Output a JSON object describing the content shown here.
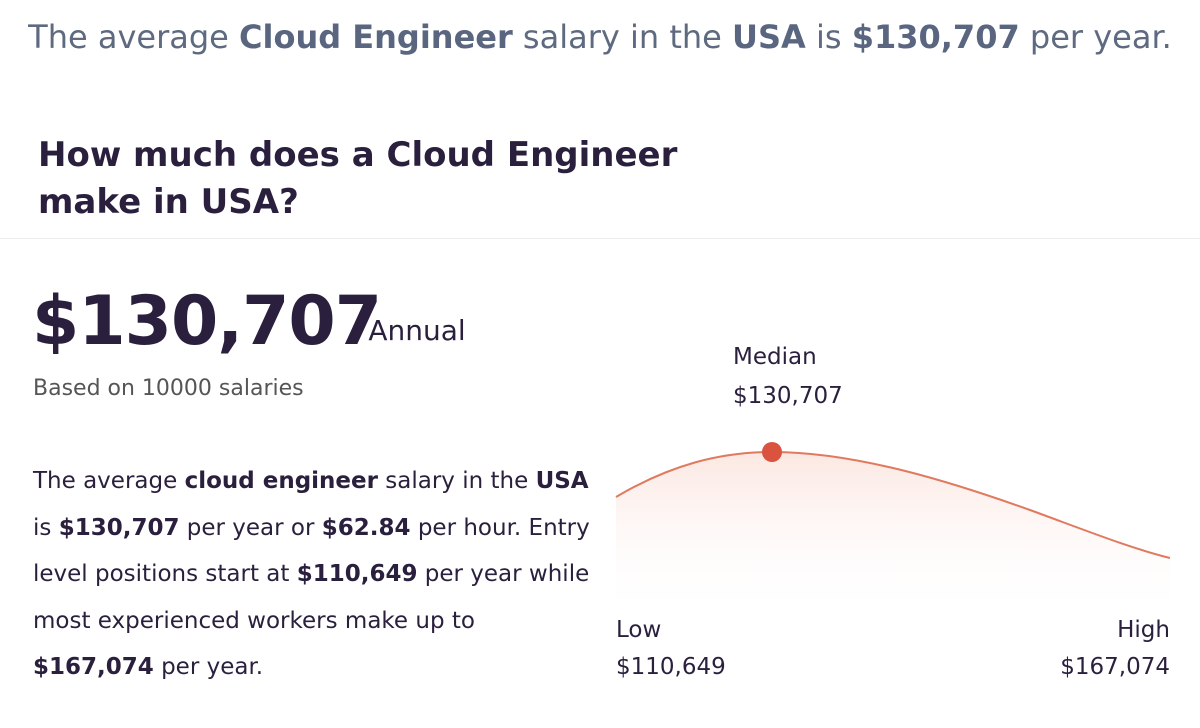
{
  "caption": {
    "p1": "The average ",
    "role": "Cloud Engineer",
    "p2": " salary in the ",
    "country": "USA",
    "p3": " is ",
    "amount": "$130,707",
    "p4": " per year."
  },
  "heading": {
    "line1": "How much does a Cloud Engineer",
    "line2": "make in USA?"
  },
  "summary": {
    "amount": "$130,707",
    "period": "/ Annual",
    "based_on": "Based on 10000 salaries"
  },
  "description": {
    "t1": "The average ",
    "b1": "cloud engineer",
    "t2": " salary in the ",
    "b2": "USA",
    "t3": " is ",
    "b3": "$130,707",
    "t4": " per year or ",
    "b4": "$62.84",
    "t5": " per hour. Entry level positions start at ",
    "b5": "$110,649",
    "t6": " per year while most experienced workers make up to ",
    "b6": "$167,074",
    "t7": " per year."
  },
  "chart_data": {
    "type": "line",
    "labels": {
      "median": "Median",
      "low": "Low",
      "high": "High"
    },
    "values_text": {
      "median": "$130,707",
      "low": "$110,649",
      "high": "$167,074"
    },
    "low": 110649,
    "median": 130707,
    "high": 167074,
    "colors": {
      "line": "#e07a5f",
      "marker": "#d9533f",
      "fill": "#fbe6e0"
    }
  }
}
